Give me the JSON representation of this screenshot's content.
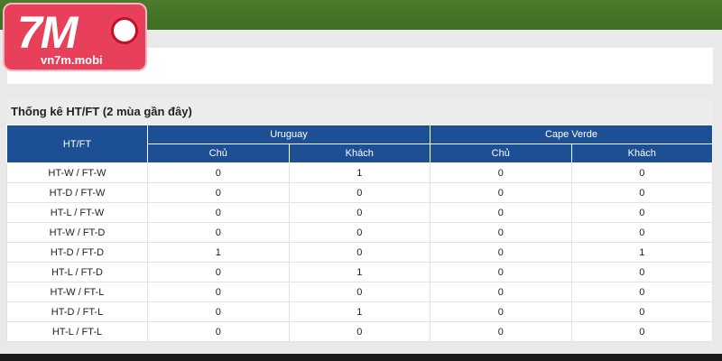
{
  "logo": {
    "mark": "7M",
    "site": "vn7m.mobi"
  },
  "table": {
    "title": "Thống kê HT/FT (2 mùa gần đây)",
    "corner": "HT/FT",
    "teams": [
      "Uruguay",
      "Cape Verde"
    ],
    "subheaders": [
      "Chủ",
      "Khách",
      "Chủ",
      "Khách"
    ],
    "rows": [
      [
        "HT-W / FT-W",
        0,
        1,
        0,
        0
      ],
      [
        "HT-D / FT-W",
        0,
        0,
        0,
        0
      ],
      [
        "HT-L / FT-W",
        0,
        0,
        0,
        0
      ],
      [
        "HT-W / FT-D",
        0,
        0,
        0,
        0
      ],
      [
        "HT-D / FT-D",
        1,
        0,
        0,
        1
      ],
      [
        "HT-L / FT-D",
        0,
        1,
        0,
        0
      ],
      [
        "HT-W / FT-L",
        0,
        0,
        0,
        0
      ],
      [
        "HT-D / FT-L",
        0,
        1,
        0,
        0
      ],
      [
        "HT-L / FT-L",
        0,
        0,
        0,
        0
      ]
    ]
  }
}
